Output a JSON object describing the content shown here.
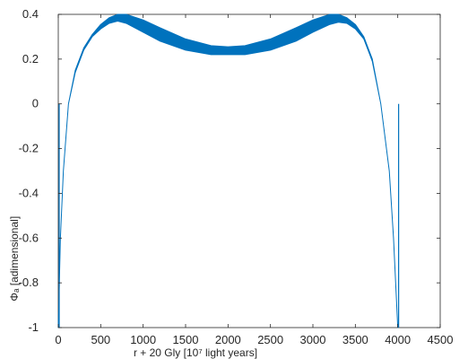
{
  "chart_data": {
    "type": "line",
    "title": "",
    "xlabel": "r + 20 Gly [10⁷ light years]",
    "ylabel": "Φₐ [adimensional]",
    "xlim": [
      0,
      4500
    ],
    "ylim": [
      -1,
      0.4
    ],
    "xticks": [
      0,
      500,
      1000,
      1500,
      2000,
      2500,
      3000,
      3500,
      4000,
      4500
    ],
    "yticks": [
      -1,
      -0.8,
      -0.6,
      -0.4,
      -0.2,
      0,
      0.2,
      0.4
    ],
    "grid": false,
    "legend": "none",
    "line_color": "#0072BD",
    "series": [
      {
        "name": "",
        "x": [
          0,
          25,
          60,
          120,
          200,
          300,
          400,
          500,
          600,
          700,
          800,
          1000,
          1200,
          1500,
          1800,
          2000,
          2200,
          2500,
          2800,
          3000,
          3200,
          3300,
          3400,
          3500,
          3600,
          3700,
          3800,
          3900,
          3950,
          4000
        ],
        "upper": [
          -1,
          -0.6,
          -0.3,
          0.0,
          0.15,
          0.25,
          0.31,
          0.355,
          0.385,
          0.4,
          0.4,
          0.375,
          0.34,
          0.29,
          0.26,
          0.255,
          0.26,
          0.29,
          0.34,
          0.375,
          0.4,
          0.4,
          0.385,
          0.355,
          0.3,
          0.2,
          0.0,
          -0.3,
          -0.6,
          -1
        ],
        "lower": [
          -1,
          -0.6,
          -0.3,
          0.0,
          0.14,
          0.24,
          0.3,
          0.335,
          0.36,
          0.37,
          0.36,
          0.32,
          0.28,
          0.24,
          0.22,
          0.22,
          0.22,
          0.24,
          0.28,
          0.32,
          0.355,
          0.365,
          0.36,
          0.335,
          0.29,
          0.19,
          0.0,
          -0.3,
          -0.6,
          -1
        ]
      }
    ],
    "spike": {
      "x": 0,
      "y_from": -1,
      "y_to": 0
    },
    "right_spike": {
      "x": 4010,
      "y_from": -1,
      "y_to": 0
    }
  }
}
